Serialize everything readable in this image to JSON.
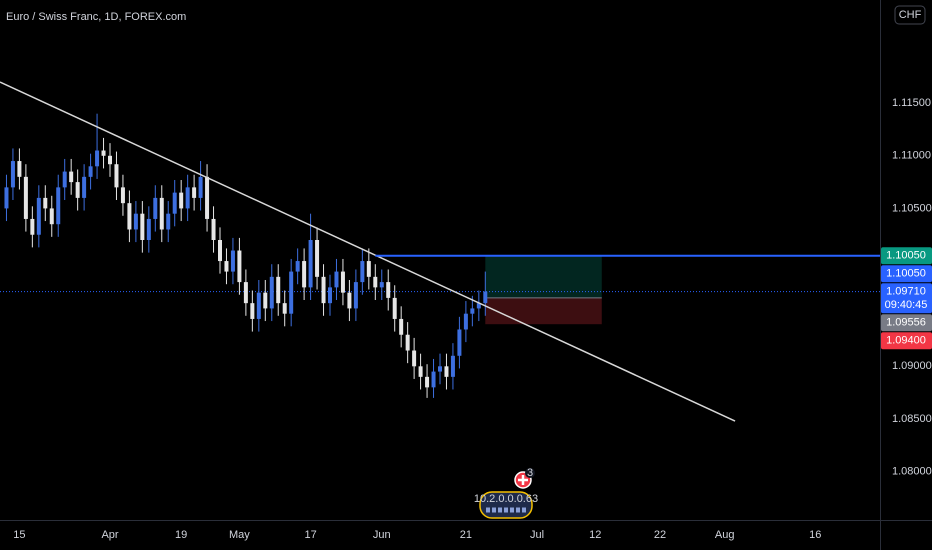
{
  "chart_data": {
    "type": "candlestick",
    "title": "Euro / Swiss Franc, 1D, FOREX.com",
    "currency_button": "CHF",
    "up_color": "#3d6fe0",
    "down_color": "#e6e6e6",
    "xlim": [
      -3,
      133
    ],
    "ylim": [
      1.0754,
      1.1248
    ],
    "xticks": [
      {
        "value": 0,
        "label": "15"
      },
      {
        "value": 14,
        "label": "Apr"
      },
      {
        "value": 25,
        "label": "19"
      },
      {
        "value": 34,
        "label": "May"
      },
      {
        "value": 45,
        "label": "17"
      },
      {
        "value": 56,
        "label": "Jun"
      },
      {
        "value": 69,
        "label": "21"
      },
      {
        "value": 80,
        "label": "Jul"
      },
      {
        "value": 89,
        "label": "12"
      },
      {
        "value": 99,
        "label": "22"
      },
      {
        "value": 109,
        "label": "Aug"
      },
      {
        "value": 123,
        "label": "16"
      }
    ],
    "yticks": [
      {
        "value": 1.08,
        "label": "1.08000"
      },
      {
        "value": 1.085,
        "label": "1.08500"
      },
      {
        "value": 1.09,
        "label": "1.09000"
      },
      {
        "value": 1.105,
        "label": "1.10500"
      },
      {
        "value": 1.11,
        "label": "1.11000"
      },
      {
        "value": 1.115,
        "label": "1.11500"
      }
    ],
    "x": [
      -2,
      -1,
      0,
      1,
      2,
      3,
      4,
      5,
      6,
      7,
      8,
      9,
      10,
      11,
      12,
      13,
      14,
      15,
      16,
      17,
      18,
      19,
      20,
      21,
      22,
      23,
      24,
      25,
      26,
      27,
      28,
      29,
      30,
      31,
      32,
      33,
      34,
      35,
      36,
      37,
      38,
      39,
      40,
      41,
      42,
      43,
      44,
      45,
      46,
      47,
      48,
      49,
      50,
      51,
      52,
      53,
      54,
      55,
      56,
      57,
      58,
      59,
      60,
      61,
      62,
      63,
      64,
      65,
      66,
      67,
      68,
      69,
      70,
      71,
      72
    ],
    "ohlc": [
      [
        1.105,
        1.1082,
        1.1038,
        1.107
      ],
      [
        1.107,
        1.1107,
        1.1058,
        1.1095
      ],
      [
        1.1095,
        1.1107,
        1.1068,
        1.108
      ],
      [
        1.108,
        1.1092,
        1.1028,
        1.104
      ],
      [
        1.104,
        1.1052,
        1.1013,
        1.1025
      ],
      [
        1.1025,
        1.1072,
        1.1013,
        1.106
      ],
      [
        1.106,
        1.1072,
        1.1038,
        1.105
      ],
      [
        1.105,
        1.1062,
        1.1023,
        1.1035
      ],
      [
        1.1035,
        1.1082,
        1.1023,
        1.107
      ],
      [
        1.107,
        1.1097,
        1.1058,
        1.1085
      ],
      [
        1.1085,
        1.1097,
        1.1063,
        1.1075
      ],
      [
        1.1075,
        1.1087,
        1.1048,
        1.106
      ],
      [
        1.106,
        1.1092,
        1.1048,
        1.108
      ],
      [
        1.108,
        1.1102,
        1.1068,
        1.109
      ],
      [
        1.109,
        1.114,
        1.1078,
        1.1105
      ],
      [
        1.1105,
        1.1117,
        1.1088,
        1.11
      ],
      [
        1.11,
        1.1112,
        1.108,
        1.1092
      ],
      [
        1.1092,
        1.1104,
        1.1058,
        1.107
      ],
      [
        1.107,
        1.1082,
        1.1043,
        1.1055
      ],
      [
        1.1055,
        1.1067,
        1.1018,
        1.103
      ],
      [
        1.103,
        1.1057,
        1.1018,
        1.1045
      ],
      [
        1.1045,
        1.1057,
        1.1008,
        1.102
      ],
      [
        1.102,
        1.1052,
        1.1008,
        1.104
      ],
      [
        1.104,
        1.1072,
        1.1028,
        1.106
      ],
      [
        1.106,
        1.1072,
        1.1018,
        1.103
      ],
      [
        1.103,
        1.1057,
        1.1018,
        1.1045
      ],
      [
        1.1045,
        1.1077,
        1.1033,
        1.1065
      ],
      [
        1.1065,
        1.1077,
        1.1038,
        1.105
      ],
      [
        1.105,
        1.1082,
        1.1038,
        1.107
      ],
      [
        1.107,
        1.1082,
        1.1048,
        1.106
      ],
      [
        1.106,
        1.1095,
        1.1048,
        1.108
      ],
      [
        1.108,
        1.1092,
        1.1028,
        1.104
      ],
      [
        1.104,
        1.1052,
        1.1008,
        1.102
      ],
      [
        1.102,
        1.1032,
        1.0988,
        1.1
      ],
      [
        1.1,
        1.1012,
        1.0978,
        1.099
      ],
      [
        1.099,
        1.1022,
        1.0978,
        1.101
      ],
      [
        1.101,
        1.1022,
        1.0968,
        1.098
      ],
      [
        1.098,
        1.0992,
        1.0948,
        1.096
      ],
      [
        1.096,
        1.0972,
        1.0933,
        1.0945
      ],
      [
        1.0945,
        1.0982,
        1.0933,
        1.097
      ],
      [
        1.097,
        1.0982,
        1.0943,
        1.0955
      ],
      [
        1.0955,
        1.0997,
        1.0943,
        1.0985
      ],
      [
        1.0985,
        1.0997,
        1.0948,
        1.096
      ],
      [
        1.096,
        1.0972,
        1.0938,
        1.095
      ],
      [
        1.095,
        1.1002,
        1.0938,
        1.099
      ],
      [
        1.099,
        1.1012,
        1.0978,
        1.1
      ],
      [
        1.1,
        1.1012,
        1.0963,
        1.0975
      ],
      [
        1.0975,
        1.1045,
        1.0963,
        1.102
      ],
      [
        1.102,
        1.1032,
        1.0973,
        1.0985
      ],
      [
        1.0985,
        1.0997,
        1.0948,
        1.096
      ],
      [
        1.096,
        1.0987,
        1.0948,
        1.0975
      ],
      [
        1.0975,
        1.1002,
        1.0963,
        1.099
      ],
      [
        1.099,
        1.1002,
        1.0958,
        1.097
      ],
      [
        1.097,
        1.0982,
        1.0943,
        1.0955
      ],
      [
        1.0955,
        1.0992,
        1.0943,
        1.098
      ],
      [
        1.098,
        1.1012,
        1.0968,
        1.1
      ],
      [
        1.1,
        1.1012,
        1.0973,
        1.0985
      ],
      [
        1.0985,
        1.0997,
        1.0963,
        1.0975
      ],
      [
        1.0975,
        1.0992,
        1.0963,
        1.098
      ],
      [
        1.098,
        1.0992,
        1.0953,
        1.0965
      ],
      [
        1.0965,
        1.0977,
        1.0933,
        1.0945
      ],
      [
        1.0945,
        1.0957,
        1.0918,
        1.093
      ],
      [
        1.093,
        1.0942,
        1.0903,
        1.0915
      ],
      [
        1.0915,
        1.0927,
        1.0888,
        1.09
      ],
      [
        1.09,
        1.0912,
        1.0878,
        1.089
      ],
      [
        1.089,
        1.0902,
        1.087,
        1.088
      ],
      [
        1.088,
        1.0907,
        1.087,
        1.0895
      ],
      [
        1.0895,
        1.0912,
        1.0883,
        1.09
      ],
      [
        1.09,
        1.0912,
        1.0878,
        1.089
      ],
      [
        1.089,
        1.0922,
        1.0878,
        1.091
      ],
      [
        1.091,
        1.0947,
        1.0898,
        1.0935
      ],
      [
        1.0935,
        1.0962,
        1.0923,
        1.095
      ],
      [
        1.095,
        1.0967,
        1.0938,
        1.0955
      ],
      [
        1.0955,
        1.0972,
        1.0943,
        1.096
      ],
      [
        1.096,
        1.099,
        1.0948,
        1.0971
      ]
    ],
    "trendline": {
      "x": [
        -3,
        110.6
      ],
      "y": [
        1.117,
        1.0848
      ],
      "color": "#d8d8d8"
    },
    "hline": {
      "x": 55,
      "y": 1.1005,
      "color": "#2962ff"
    },
    "position": {
      "x": [
        72,
        90
      ],
      "target": 1.1005,
      "entry": 1.0965,
      "stop": 1.094
    },
    "price_tags": [
      {
        "value": 1.1005,
        "label": "1.10050",
        "color": "#089981"
      },
      {
        "value": 1.1005,
        "label": "1.10050",
        "color": "#2962ff"
      },
      {
        "value": 1.0971,
        "label": "1.09710",
        "sub": "09:40:45",
        "color": "#2962ff"
      },
      {
        "value": 1.09556,
        "label": "1.09556",
        "color": "#787b86"
      },
      {
        "value": 1.094,
        "label": "1.09400",
        "color": "#f23645"
      }
    ],
    "event_count": 3,
    "event_label": "10.2.0.0.0.63"
  }
}
